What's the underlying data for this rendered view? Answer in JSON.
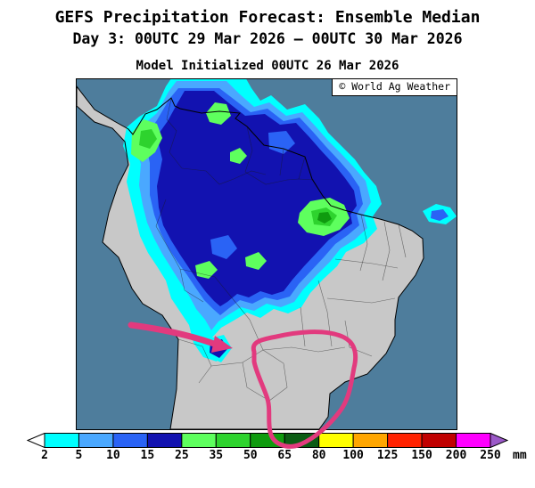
{
  "header": {
    "title": "GEFS Precipitation Forecast: Ensemble Median",
    "subtitle": "Day 3: 00UTC 29 Mar 2026 — 00UTC 30 Mar 2026",
    "model_init": "Model Initialized 00UTC 26 Mar 2026"
  },
  "map": {
    "copyright": "© World Ag Weather",
    "ocean_color": "#4e7d9c",
    "land_color": "#c8c8c8",
    "annotation_color": "#e23a7e",
    "region": "South America"
  },
  "legend": {
    "unit": "mm",
    "tick_labels": [
      "2",
      "5",
      "10",
      "15",
      "25",
      "35",
      "50",
      "65",
      "80",
      "100",
      "125",
      "150",
      "200",
      "250"
    ],
    "segment_colors": [
      "#ffffff",
      "#00ffff",
      "#4aa8ff",
      "#2a63f5",
      "#1212b0",
      "#5eff5e",
      "#2ed32e",
      "#0f9b0f",
      "#0b5c14",
      "#ffff00",
      "#ffa600",
      "#ff2200",
      "#c00000",
      "#ff00ff",
      "#9b59c8"
    ],
    "segment_ranges": [
      "<2",
      "2-5",
      "5-10",
      "10-15",
      "15-25",
      "25-35",
      "35-50",
      "50-65",
      "65-80",
      "80-100",
      "100-125",
      "125-150",
      "150-200",
      "200-250",
      ">250"
    ]
  }
}
